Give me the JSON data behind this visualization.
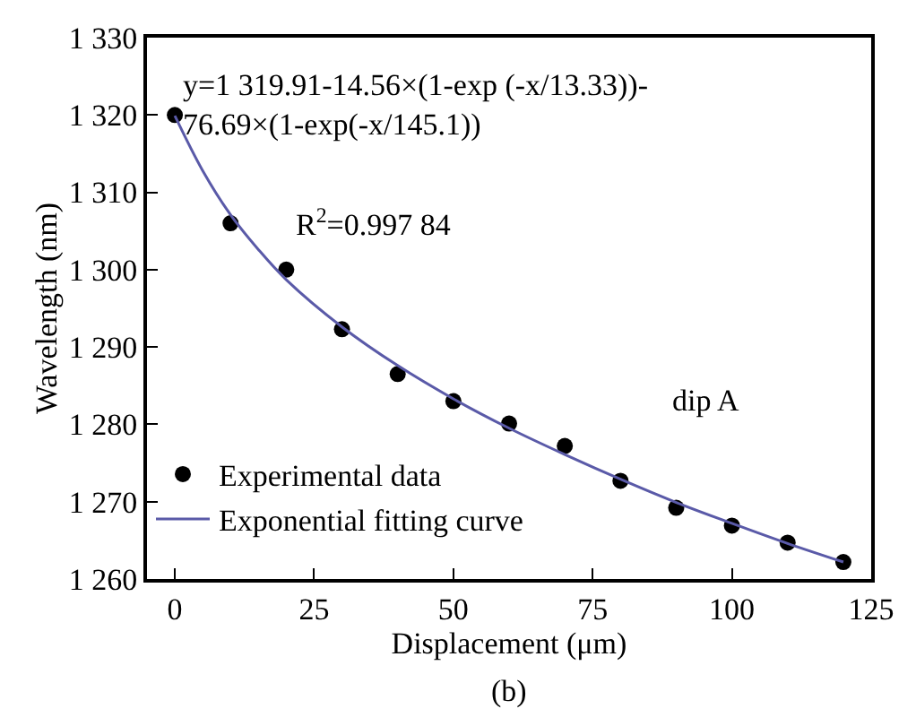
{
  "chart_data": {
    "type": "scatter",
    "xlabel": "Displacement (μm)",
    "ylabel": "Wavelength (nm)",
    "xlim": [
      -5,
      125
    ],
    "xticks": [
      0,
      25,
      50,
      75,
      100,
      125
    ],
    "ylim": [
      1260,
      1330
    ],
    "yticks": [
      {
        "value": 1260,
        "label": "1 260"
      },
      {
        "value": 1270,
        "label": "1 270"
      },
      {
        "value": 1280,
        "label": "1 280"
      },
      {
        "value": 1290,
        "label": "1 290"
      },
      {
        "value": 1300,
        "label": "1 300"
      },
      {
        "value": 1310,
        "label": "1 310"
      },
      {
        "value": 1320,
        "label": "1 320"
      },
      {
        "value": 1330,
        "label": "1 330"
      }
    ],
    "legend": "bottom left",
    "series": [
      {
        "name": "Experimental data",
        "marker": "circle",
        "color": "#000000",
        "x": [
          0,
          10,
          20,
          30,
          40,
          50,
          60,
          70,
          80,
          90,
          100,
          110,
          120
        ],
        "values": [
          1320,
          1306,
          1300,
          1292.3,
          1286.5,
          1283,
          1280.1,
          1277.2,
          1272.7,
          1269.2,
          1266.9,
          1264.7,
          1262.2
        ]
      },
      {
        "name": "Exponential fitting curve",
        "type": "line",
        "marker": "none",
        "line_style": "solid",
        "color": "#5a5aa8",
        "x": [
          0,
          5,
          10,
          15,
          20,
          30,
          40,
          50,
          60,
          70,
          80,
          90,
          100,
          110,
          120
        ],
        "values": [
          1319.9,
          1312.8,
          1307.1,
          1302.6,
          1298.7,
          1292.6,
          1287.6,
          1283.3,
          1279.5,
          1276.1,
          1272.9,
          1269.9,
          1267.2,
          1264.6,
          1262.2
        ]
      }
    ],
    "annotations": [
      "y=1 319.91-14.56×(1-exp (-x/13.33))-\n76.69×(1-exp(-x/145.1))",
      "R$^{2}$=0.997 84",
      "dip A",
      "(b)"
    ]
  }
}
